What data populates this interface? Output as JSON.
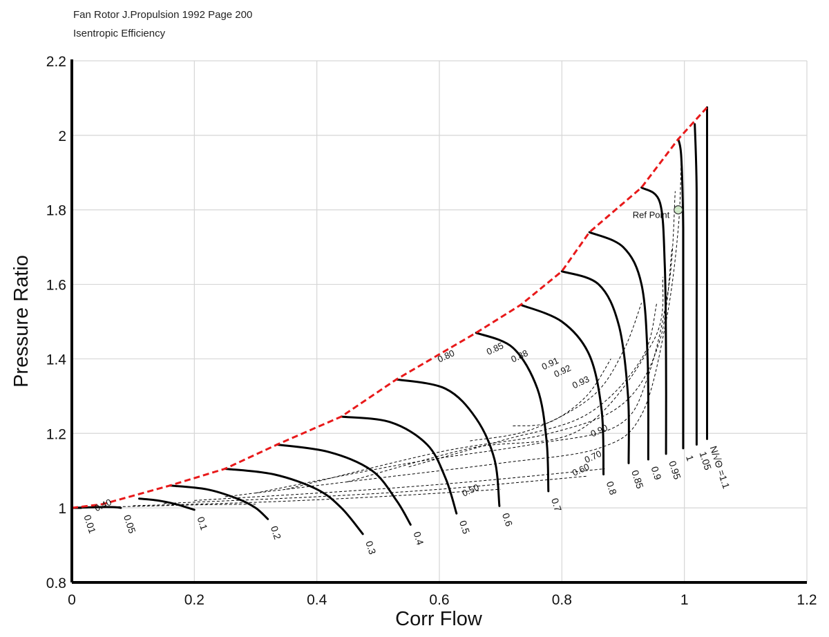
{
  "chart_data": {
    "type": "line",
    "title": "Fan Rotor J.Propulsion 1992 Page 200",
    "subtitle": "Isentropic Efficiency",
    "xlabel": "Corr Flow",
    "ylabel": "Pressure Ratio",
    "xlim": [
      0,
      1.2
    ],
    "ylim": [
      0.8,
      2.2
    ],
    "xticks": [
      "0",
      "0.2",
      "0.4",
      "0.6",
      "0.8",
      "1",
      "1.2"
    ],
    "yticks": [
      "0.8",
      "1",
      "1.2",
      "1.4",
      "1.6",
      "1.8",
      "2",
      "2.2"
    ],
    "grid": true,
    "colors": {
      "speed_lines": "#000000",
      "efficiency_contours": "#000000",
      "surge_line": "#e8191a",
      "ref_point_fill": "#cfe8c8"
    },
    "speed_label_prefix": "N/√Θ =",
    "speed_lines": [
      {
        "label": "0.01",
        "points": [
          [
            0.003,
            1.0
          ],
          [
            0.01,
            1.0
          ],
          [
            0.015,
            1.0
          ]
        ]
      },
      {
        "label": "0.05",
        "points": [
          [
            0.0,
            1.0
          ],
          [
            0.04,
            1.002
          ],
          [
            0.07,
            1.002
          ],
          [
            0.08,
            1.0
          ]
        ]
      },
      {
        "label": "0.1",
        "points": [
          [
            0.11,
            1.025
          ],
          [
            0.14,
            1.02
          ],
          [
            0.17,
            1.01
          ],
          [
            0.19,
            1.0
          ],
          [
            0.2,
            0.995
          ]
        ]
      },
      {
        "label": "0.2",
        "points": [
          [
            0.16,
            1.06
          ],
          [
            0.22,
            1.05
          ],
          [
            0.27,
            1.025
          ],
          [
            0.3,
            1.0
          ],
          [
            0.32,
            0.97
          ]
        ]
      },
      {
        "label": "0.3",
        "points": [
          [
            0.25,
            1.105
          ],
          [
            0.33,
            1.09
          ],
          [
            0.4,
            1.05
          ],
          [
            0.44,
            1.0
          ],
          [
            0.475,
            0.93
          ]
        ]
      },
      {
        "label": "0.4",
        "points": [
          [
            0.335,
            1.17
          ],
          [
            0.42,
            1.15
          ],
          [
            0.49,
            1.1
          ],
          [
            0.53,
            1.02
          ],
          [
            0.553,
            0.955
          ]
        ]
      },
      {
        "label": "0.5",
        "points": [
          [
            0.44,
            1.245
          ],
          [
            0.52,
            1.23
          ],
          [
            0.58,
            1.17
          ],
          [
            0.61,
            1.08
          ],
          [
            0.628,
            0.985
          ]
        ]
      },
      {
        "label": "0.6",
        "points": [
          [
            0.53,
            1.345
          ],
          [
            0.61,
            1.32
          ],
          [
            0.66,
            1.24
          ],
          [
            0.69,
            1.13
          ],
          [
            0.698,
            1.005
          ]
        ]
      },
      {
        "label": "0.7",
        "points": [
          [
            0.66,
            1.47
          ],
          [
            0.72,
            1.43
          ],
          [
            0.76,
            1.32
          ],
          [
            0.775,
            1.18
          ],
          [
            0.778,
            1.045
          ]
        ]
      },
      {
        "label": "0.8",
        "points": [
          [
            0.733,
            1.545
          ],
          [
            0.8,
            1.5
          ],
          [
            0.845,
            1.41
          ],
          [
            0.865,
            1.26
          ],
          [
            0.868,
            1.09
          ]
        ]
      },
      {
        "label": "0.85",
        "points": [
          [
            0.8,
            1.635
          ],
          [
            0.86,
            1.6
          ],
          [
            0.893,
            1.49
          ],
          [
            0.908,
            1.3
          ],
          [
            0.909,
            1.12
          ]
        ]
      },
      {
        "label": "0.9",
        "points": [
          [
            0.845,
            1.74
          ],
          [
            0.9,
            1.7
          ],
          [
            0.93,
            1.6
          ],
          [
            0.94,
            1.4
          ],
          [
            0.941,
            1.13
          ]
        ]
      },
      {
        "label": "0.95",
        "points": [
          [
            0.93,
            1.86
          ],
          [
            0.96,
            1.82
          ],
          [
            0.968,
            1.65
          ],
          [
            0.97,
            1.4
          ],
          [
            0.97,
            1.145
          ]
        ]
      },
      {
        "label": "1",
        "points": [
          [
            0.99,
            1.99
          ],
          [
            0.995,
            1.94
          ],
          [
            0.998,
            1.75
          ],
          [
            0.998,
            1.5
          ],
          [
            0.998,
            1.16
          ]
        ]
      },
      {
        "label": "1.05",
        "points": [
          [
            1.017,
            2.03
          ],
          [
            1.02,
            1.85
          ],
          [
            1.02,
            1.5
          ],
          [
            1.02,
            1.17
          ]
        ]
      },
      {
        "label": "1.1",
        "points": [
          [
            1.037,
            2.075
          ],
          [
            1.037,
            1.8
          ],
          [
            1.037,
            1.5
          ],
          [
            1.037,
            1.185
          ]
        ]
      }
    ],
    "surge_line": [
      [
        0.0,
        1.0
      ],
      [
        0.05,
        1.01
      ],
      [
        0.16,
        1.06
      ],
      [
        0.25,
        1.105
      ],
      [
        0.335,
        1.17
      ],
      [
        0.44,
        1.245
      ],
      [
        0.53,
        1.345
      ],
      [
        0.66,
        1.47
      ],
      [
        0.733,
        1.545
      ],
      [
        0.8,
        1.635
      ],
      [
        0.845,
        1.74
      ],
      [
        0.93,
        1.86
      ],
      [
        0.99,
        1.99
      ],
      [
        1.037,
        2.075
      ]
    ],
    "efficiency_contours": [
      {
        "label": "0.40",
        "points": [
          [
            0.02,
            1.002
          ],
          [
            0.1,
            1.004
          ],
          [
            0.2,
            1.008
          ],
          [
            0.3,
            1.01
          ]
        ]
      },
      {
        "label": "0.50",
        "points": [
          [
            0.1,
            1.006
          ],
          [
            0.3,
            1.015
          ],
          [
            0.5,
            1.03
          ],
          [
            0.7,
            1.05
          ]
        ]
      },
      {
        "label": "0.60",
        "points": [
          [
            0.15,
            1.012
          ],
          [
            0.4,
            1.03
          ],
          [
            0.6,
            1.05
          ],
          [
            0.84,
            1.085
          ]
        ]
      },
      {
        "label": "0.70",
        "points": [
          [
            0.2,
            1.02
          ],
          [
            0.45,
            1.045
          ],
          [
            0.65,
            1.07
          ],
          [
            0.87,
            1.105
          ]
        ]
      },
      {
        "label": "0.80",
        "points": [
          [
            0.25,
            1.03
          ],
          [
            0.5,
            1.08
          ],
          [
            0.7,
            1.12
          ],
          [
            0.86,
            1.16
          ],
          [
            0.93,
            1.25
          ],
          [
            0.97,
            1.5
          ],
          [
            0.99,
            1.75
          ],
          [
            0.995,
            1.95
          ]
        ]
      },
      {
        "label": "0.85",
        "points": [
          [
            0.3,
            1.04
          ],
          [
            0.55,
            1.12
          ],
          [
            0.75,
            1.17
          ],
          [
            0.89,
            1.22
          ],
          [
            0.94,
            1.35
          ],
          [
            0.975,
            1.6
          ],
          [
            0.985,
            1.85
          ]
        ]
      },
      {
        "label": "0.88",
        "points": [
          [
            0.35,
            1.05
          ],
          [
            0.6,
            1.15
          ],
          [
            0.78,
            1.2
          ],
          [
            0.9,
            1.28
          ],
          [
            0.96,
            1.45
          ],
          [
            0.98,
            1.7
          ]
        ]
      },
      {
        "label": "0.90",
        "points": [
          [
            0.45,
            1.07
          ],
          [
            0.65,
            1.16
          ],
          [
            0.83,
            1.21
          ],
          [
            0.95,
            1.45
          ],
          [
            0.965,
            1.62
          ]
        ]
      },
      {
        "label": "0.91",
        "points": [
          [
            0.55,
            1.11
          ],
          [
            0.7,
            1.18
          ],
          [
            0.84,
            1.25
          ],
          [
            0.93,
            1.4
          ],
          [
            0.955,
            1.55
          ]
        ]
      },
      {
        "label": "0.92",
        "points": [
          [
            0.65,
            1.18
          ],
          [
            0.75,
            1.21
          ],
          [
            0.85,
            1.3
          ],
          [
            0.9,
            1.42
          ],
          [
            0.93,
            1.55
          ]
        ]
      },
      {
        "label": "0.93",
        "points": [
          [
            0.72,
            1.22
          ],
          [
            0.78,
            1.23
          ],
          [
            0.84,
            1.3
          ],
          [
            0.88,
            1.4
          ]
        ]
      }
    ],
    "annotations": [
      {
        "text": "Ref Point",
        "x": 0.99,
        "y": 1.8
      },
      {
        "text": "0.80",
        "x": 0.6,
        "y": 1.39
      },
      {
        "text": "0.85",
        "x": 0.68,
        "y": 1.41
      },
      {
        "text": "0.88",
        "x": 0.72,
        "y": 1.39
      },
      {
        "text": "0.91",
        "x": 0.77,
        "y": 1.37
      },
      {
        "text": "0.92",
        "x": 0.79,
        "y": 1.35
      },
      {
        "text": "0.93",
        "x": 0.82,
        "y": 1.32
      },
      {
        "text": "0.90",
        "x": 0.85,
        "y": 1.19
      },
      {
        "text": "0.70",
        "x": 0.84,
        "y": 1.12
      },
      {
        "text": "0.60",
        "x": 0.82,
        "y": 1.085
      },
      {
        "text": "0.50",
        "x": 0.64,
        "y": 1.03
      },
      {
        "text": "0.40",
        "x": 0.04,
        "y": 0.99
      }
    ],
    "ref_point": {
      "x": 0.99,
      "y": 1.8
    }
  }
}
